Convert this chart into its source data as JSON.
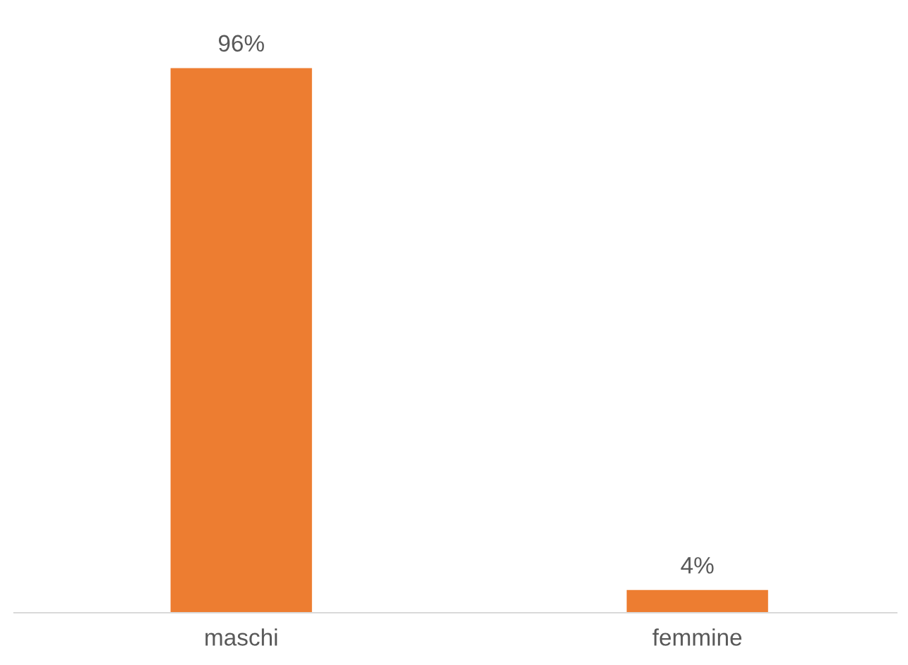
{
  "chart_data": {
    "type": "bar",
    "categories": [
      "maschi",
      "femmine"
    ],
    "values": [
      96,
      4
    ],
    "value_labels": [
      "96%",
      "4%"
    ],
    "color": "#ed7d31",
    "grid": false,
    "legend": false
  }
}
